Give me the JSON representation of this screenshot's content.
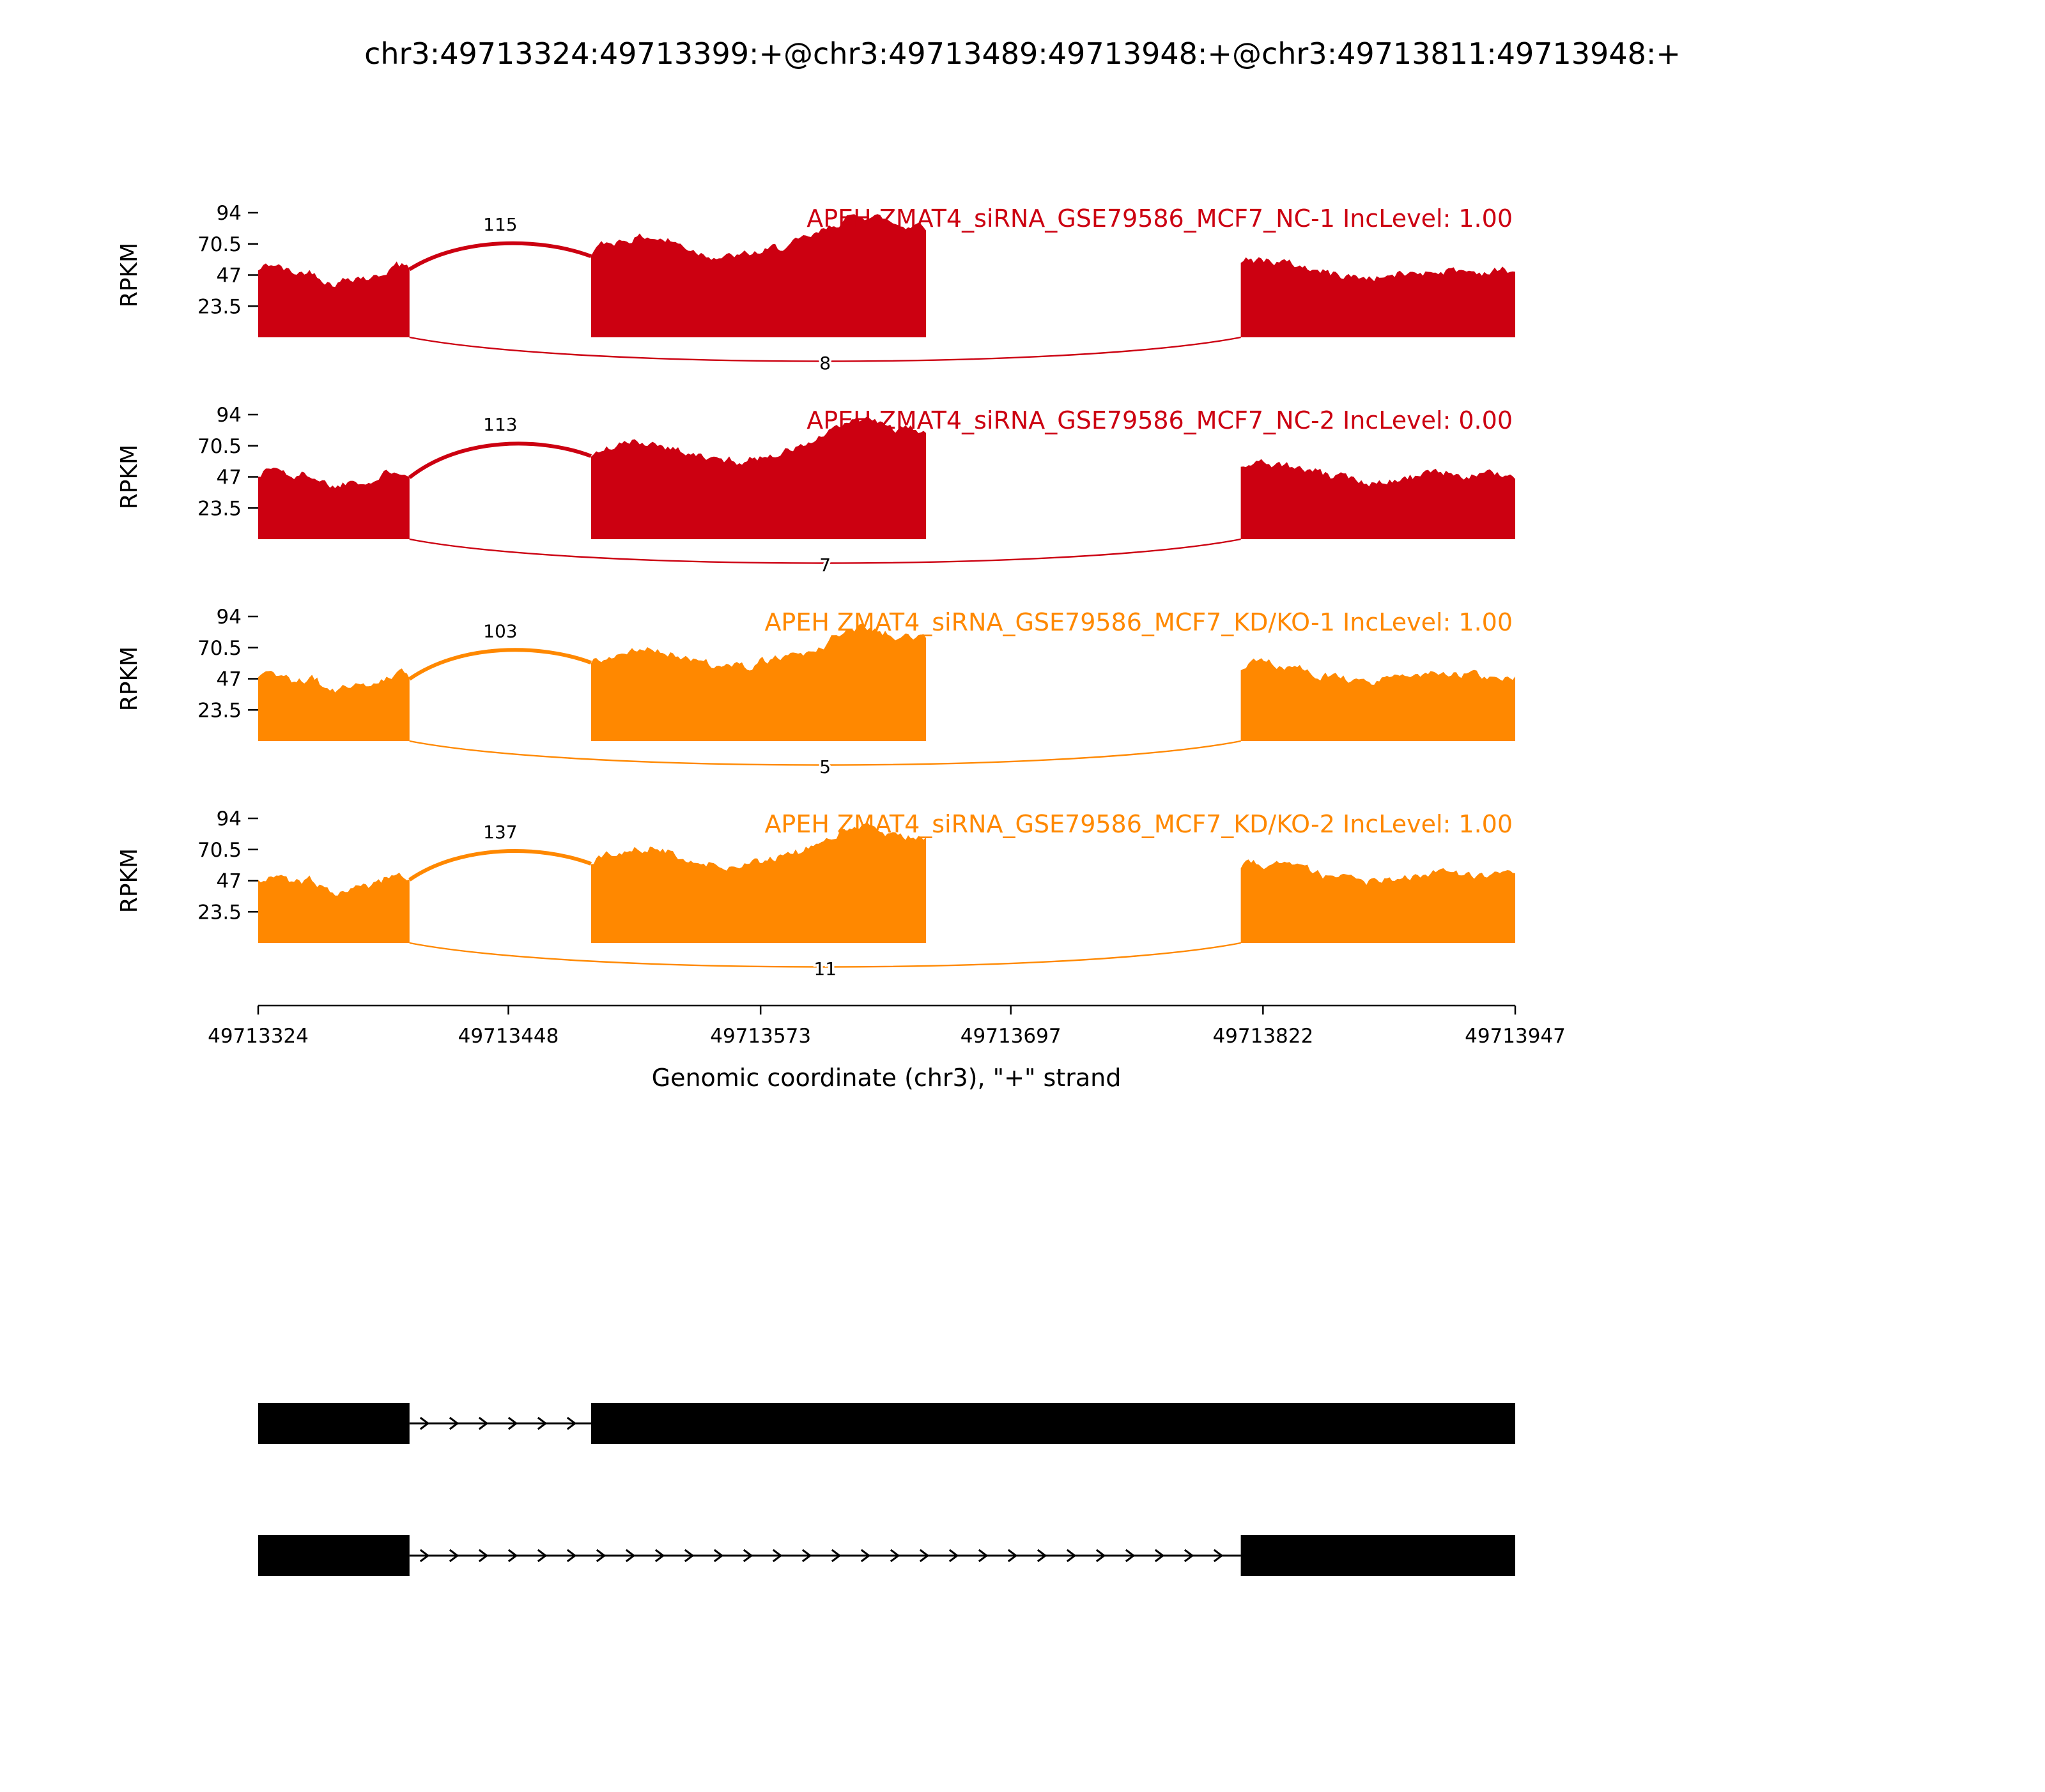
{
  "chart_data": {
    "type": "area",
    "subtype": "rna-seq-sashimi-plot",
    "title": "chr3:49713324:49713399:+@chr3:49713489:49713948:+@chr3:49713811:49713948:+",
    "xlabel": "Genomic coordinate (chr3), \"+\" strand",
    "ylabel": "RPKM",
    "xlim": [
      49713324,
      49713947
    ],
    "ylim": [
      0,
      94
    ],
    "x_ticks": [
      49713324,
      49713448,
      49713573,
      49713697,
      49713822,
      49713947
    ],
    "y_ticks": [
      23.5,
      47,
      70.5,
      94
    ],
    "grid": false,
    "coverage_regions": [
      {
        "start": 49713324,
        "end": 49713399
      },
      {
        "start": 49713489,
        "end": 49713655
      },
      {
        "start": 49713811,
        "end": 49713947
      }
    ],
    "tracks": [
      {
        "label": "APEH ZMAT4_siRNA_GSE79586_MCF7_NC-1 IncLevel: 1.00",
        "inc_level": "1.00",
        "color": "#CC0011",
        "region_mean_rpkm": [
          48,
          61,
          50
        ],
        "junctions": [
          {
            "from": 49713399,
            "to": 49713489,
            "count": 115,
            "arc": "top"
          },
          {
            "from": 49713399,
            "to": 49713811,
            "count": 8,
            "arc": "bottom"
          }
        ],
        "seed": 42
      },
      {
        "label": "APEH ZMAT4_siRNA_GSE79586_MCF7_NC-2 IncLevel: 0.00",
        "inc_level": "0.00",
        "color": "#CC0011",
        "region_mean_rpkm": [
          47,
          59,
          49
        ],
        "junctions": [
          {
            "from": 49713399,
            "to": 49713489,
            "count": 113,
            "arc": "top"
          },
          {
            "from": 49713399,
            "to": 49713811,
            "count": 7,
            "arc": "bottom"
          }
        ],
        "seed": 1337
      },
      {
        "label": "APEH ZMAT4_siRNA_GSE79586_MCF7_KD/KO-1 IncLevel: 1.00",
        "inc_level": "1.00",
        "color": "#FF8800",
        "region_mean_rpkm": [
          45,
          56,
          50
        ],
        "junctions": [
          {
            "from": 49713399,
            "to": 49713489,
            "count": 103,
            "arc": "top"
          },
          {
            "from": 49713399,
            "to": 49713811,
            "count": 5,
            "arc": "bottom"
          }
        ],
        "seed": 2024
      },
      {
        "label": "APEH ZMAT4_siRNA_GSE79586_MCF7_KD/KO-2 IncLevel: 1.00",
        "inc_level": "1.00",
        "color": "#FF8800",
        "region_mean_rpkm": [
          45,
          58,
          51
        ],
        "junctions": [
          {
            "from": 49713399,
            "to": 49713489,
            "count": 137,
            "arc": "top"
          },
          {
            "from": 49713399,
            "to": 49713811,
            "count": 11,
            "arc": "bottom"
          }
        ],
        "seed": 777
      }
    ],
    "transcripts": [
      {
        "exons": [
          [
            49713324,
            49713399
          ],
          [
            49713489,
            49713948
          ]
        ],
        "strand": "+"
      },
      {
        "exons": [
          [
            49713324,
            49713399
          ],
          [
            49713811,
            49713948
          ]
        ],
        "strand": "+"
      }
    ]
  }
}
